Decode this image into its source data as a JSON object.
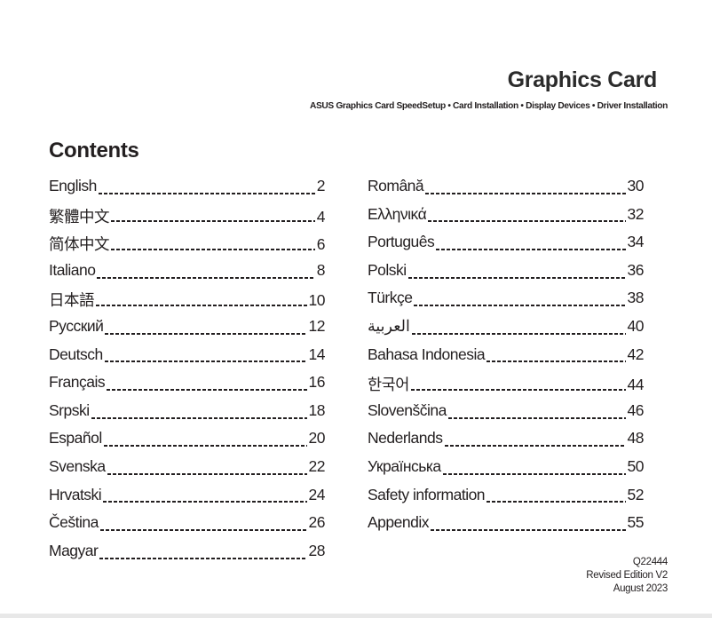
{
  "header": {
    "title": "Graphics Card",
    "subtitle": "ASUS Graphics Card SpeedSetup • Card Installation • Display Devices • Driver Installation"
  },
  "contents_heading": "Contents",
  "toc_left": [
    {
      "label": "English",
      "page": "2"
    },
    {
      "label": "繁體中文",
      "page": "4"
    },
    {
      "label": "简体中文",
      "page": "6"
    },
    {
      "label": "Italiano",
      "page": "8"
    },
    {
      "label": "日本語",
      "page": "10"
    },
    {
      "label": "Русский",
      "page": "12"
    },
    {
      "label": "Deutsch",
      "page": "14"
    },
    {
      "label": "Français",
      "page": "16"
    },
    {
      "label": "Srpski",
      "page": "18"
    },
    {
      "label": "Español",
      "page": "20"
    },
    {
      "label": "Svenska",
      "page": "22"
    },
    {
      "label": "Hrvatski",
      "page": "24"
    },
    {
      "label": "Čeština",
      "page": "26"
    },
    {
      "label": "Magyar",
      "page": "28"
    }
  ],
  "toc_right": [
    {
      "label": "Română",
      "page": "30"
    },
    {
      "label": "Ελληνικά",
      "page": "32"
    },
    {
      "label": "Português",
      "page": "34"
    },
    {
      "label": "Polski",
      "page": "36"
    },
    {
      "label": "Türkçe",
      "page": "38"
    },
    {
      "label": "العربية",
      "page": "40"
    },
    {
      "label": "Bahasa Indonesia",
      "page": "42"
    },
    {
      "label": "한국어",
      "page": "44"
    },
    {
      "label": "Slovenščina",
      "page": "46"
    },
    {
      "label": "Nederlands",
      "page": "48"
    },
    {
      "label": "Українська",
      "page": "50"
    },
    {
      "label": "Safety information",
      "page": "52"
    },
    {
      "label": "Appendix",
      "page": "55"
    }
  ],
  "footer": {
    "code": "Q22444",
    "edition": "Revised Edition V2",
    "date": "August 2023"
  }
}
